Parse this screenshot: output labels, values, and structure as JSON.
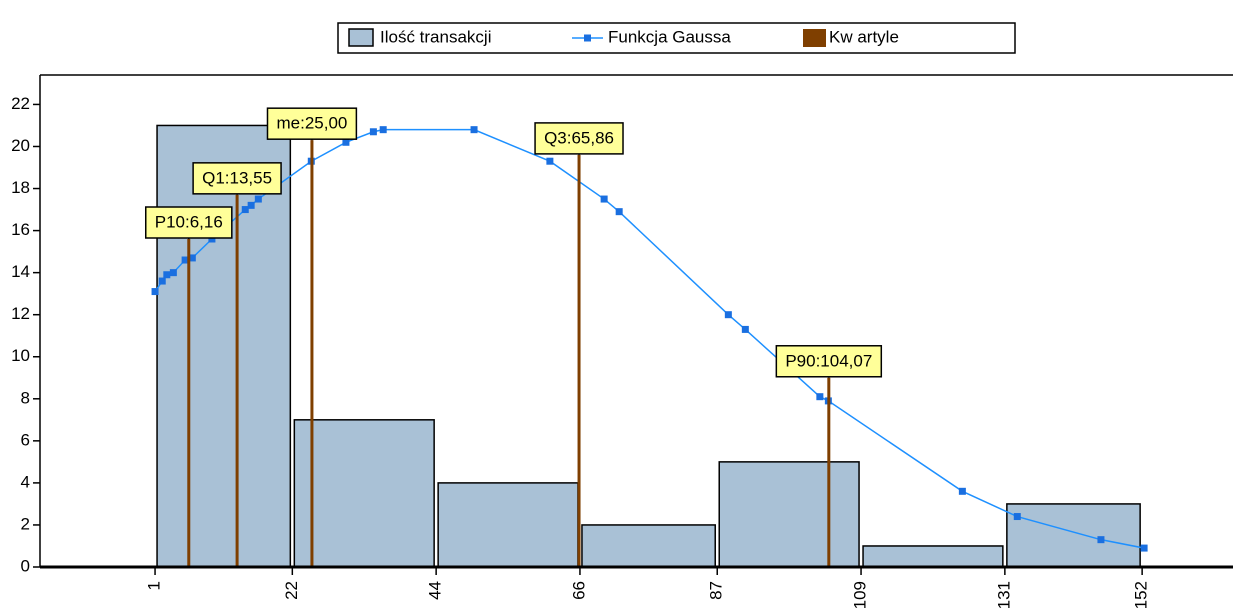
{
  "chart_data": {
    "type": "histogram",
    "bins": [
      1,
      22,
      44,
      66,
      87,
      109,
      131,
      152
    ],
    "histogram": {
      "name": "Ilość transakcji",
      "color": "#a9c1d6",
      "values": [
        21,
        7,
        4,
        2,
        5,
        1,
        3
      ]
    },
    "gauss": {
      "name": "Funkcja Gaussa",
      "color": "#1e90ff",
      "x": [
        1,
        2.1,
        2.8,
        3.8,
        5.6,
        6.7,
        9.7,
        14.8,
        15.7,
        16.8,
        24.9,
        30.2,
        34.4,
        35.9,
        49.8,
        61.4,
        69.7,
        72,
        88.7,
        91.3,
        102.7,
        104,
        124.5,
        132.9,
        145.7,
        152.3
      ],
      "values": [
        13.1,
        13.6,
        13.9,
        14.0,
        14.6,
        14.7,
        15.6,
        17.0,
        17.2,
        17.5,
        19.3,
        20.2,
        20.7,
        20.8,
        20.8,
        19.3,
        17.5,
        16.9,
        12.0,
        11.3,
        8.1,
        7.9,
        3.6,
        2.4,
        1.3,
        0.9
      ]
    },
    "quartiles": {
      "name": "Kw artyle",
      "color": "#7f3f00",
      "x": [
        6.16,
        13.55,
        25.0,
        65.86,
        104.07
      ],
      "values": [
        15.6,
        17.7,
        20.3,
        19.6,
        9.0
      ],
      "labels": [
        "P10:6,16",
        "Q1:13,55",
        "me:25,00",
        "Q3:65,86",
        "P90:104,07"
      ]
    },
    "xlim": [
      -16.6,
      165.9
    ],
    "xticks": [
      1,
      22,
      44,
      66,
      87,
      109,
      131,
      152
    ],
    "ylim": [
      0,
      23.4
    ],
    "yticks": [
      0,
      2,
      4,
      6,
      8,
      10,
      12,
      14,
      16,
      18,
      20,
      22
    ]
  }
}
